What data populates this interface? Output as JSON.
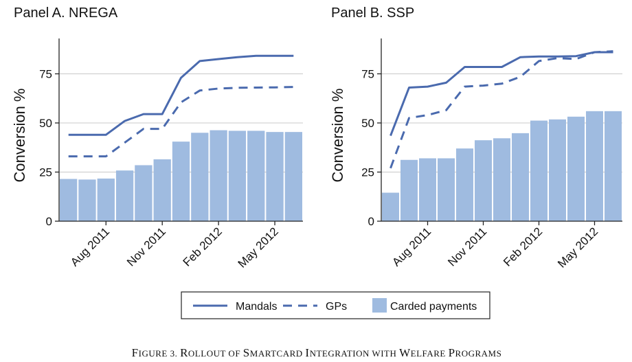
{
  "colors": {
    "line": "#4a6aae",
    "bar": "#9fbbe0",
    "grid": "#c8c8c8",
    "axis": "#222222"
  },
  "legend": {
    "mandals": "Mandals",
    "gps": "GPs",
    "carded": "Carded payments"
  },
  "caption": {
    "first": "F",
    "rest1": "IGURE 3. ",
    "R": "R",
    "rest2": "OLLOUT OF ",
    "S": "S",
    "rest3": "MARTCARD ",
    "I": "I",
    "rest4": "NTEGRATION WITH ",
    "W": "W",
    "rest5": "ELFARE ",
    "P": "P",
    "rest6": "ROGRAMS"
  },
  "chart_data": [
    {
      "type": "bar",
      "title": "Panel A. NREGA",
      "ylabel": "Conversion %",
      "xlabel": "",
      "ylim": [
        0,
        93
      ],
      "yticks": [
        0,
        25,
        50,
        75
      ],
      "xticks": [
        {
          "label": "Aug 2011",
          "index": 2.5
        },
        {
          "label": "Nov 2011",
          "index": 5.5
        },
        {
          "label": "Feb 2012",
          "index": 8.5
        },
        {
          "label": "May 2012",
          "index": 11.5
        }
      ],
      "grid": true,
      "series": [
        {
          "name": "Carded payments",
          "kind": "bar",
          "values": [
            21.5,
            21.2,
            21.7,
            25.8,
            28.5,
            31.5,
            40.5,
            45,
            46.3,
            46,
            46,
            45.4,
            45.4
          ]
        },
        {
          "name": "Mandals",
          "kind": "line",
          "values": [
            44,
            44,
            44,
            51,
            54.5,
            54.5,
            73,
            81.5,
            82.5,
            83.5,
            84.2,
            84.2,
            84.2
          ]
        },
        {
          "name": "GPs",
          "kind": "dash",
          "values": [
            33,
            33,
            33,
            40,
            47,
            47,
            60.5,
            66.5,
            67.5,
            67.9,
            68,
            68.1,
            68.3
          ]
        }
      ]
    },
    {
      "type": "bar",
      "title": "Panel B. SSP",
      "ylabel": "Conversion %",
      "xlabel": "",
      "ylim": [
        0,
        93
      ],
      "yticks": [
        0,
        25,
        50,
        75
      ],
      "xticks": [
        {
          "label": "Aug 2011",
          "index": 2.5
        },
        {
          "label": "Nov 2011",
          "index": 5.5
        },
        {
          "label": "Feb 2012",
          "index": 8.5
        },
        {
          "label": "May 2012",
          "index": 11.5
        }
      ],
      "grid": true,
      "series": [
        {
          "name": "Carded payments",
          "kind": "bar",
          "values": [
            14.5,
            31.2,
            32,
            32,
            37,
            41.2,
            42.2,
            44.8,
            51.2,
            51.8,
            53.2,
            56,
            56
          ]
        },
        {
          "name": "Mandals",
          "kind": "line",
          "values": [
            43.5,
            68,
            68.5,
            70.5,
            78.5,
            78.5,
            78.5,
            83.5,
            83.8,
            83.8,
            84,
            86,
            86
          ]
        },
        {
          "name": "GPs",
          "kind": "dash",
          "values": [
            27,
            52.5,
            54,
            56.5,
            68.5,
            69,
            70,
            73.5,
            81.5,
            83,
            82.5,
            86,
            86.5
          ]
        }
      ]
    }
  ]
}
